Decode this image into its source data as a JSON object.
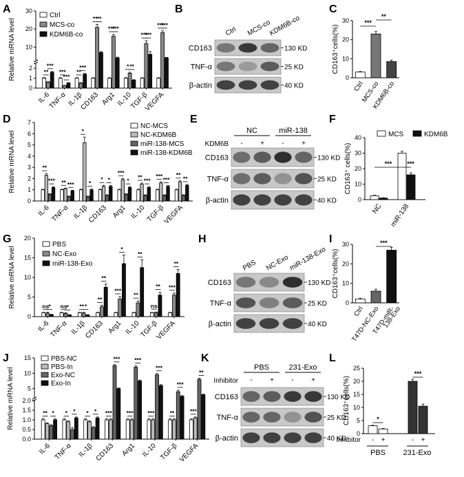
{
  "panels": {
    "A": {
      "letter": "A",
      "ylabel": "Relative mRNA level",
      "legend": [
        "Ctrl",
        "MCS-co",
        "KDM6B-co"
      ],
      "fills": [
        "#ffffff",
        "#888888",
        "#111111"
      ],
      "categories": [
        "IL-6",
        "TNF-α",
        "IL-1β",
        "CD163",
        "Arg1",
        "IL-10",
        "TGF-β",
        "VEGFA"
      ],
      "top_ticks": [
        "30",
        "20",
        "10"
      ],
      "bottom_ticks": [
        "2",
        "1",
        "0"
      ],
      "break_at": 2.5,
      "sigs": [
        "**",
        "***",
        "***",
        "***",
        "**",
        "***",
        "**",
        "**",
        "***",
        "***",
        "*",
        "**",
        "***",
        "***",
        "***",
        "***"
      ]
    },
    "B": {
      "letter": "B",
      "lanes": [
        "Ctrl",
        "MCS-co",
        "KDM6B-co"
      ],
      "rows": [
        "CD163",
        "TNF-α",
        "β-actin"
      ],
      "sizes": [
        "130 KD",
        "25 KD",
        "40 KD"
      ]
    },
    "C": {
      "letter": "C",
      "ylabel": "CD163⁺cells(%)",
      "categories": [
        "Ctrl",
        "MCS-co",
        "KDM6B-co"
      ],
      "yticks": [
        "0",
        "10",
        "20",
        "30"
      ],
      "sigs": [
        "***",
        "**"
      ]
    },
    "D": {
      "letter": "D",
      "ylabel": "Relative mRNA level",
      "legend": [
        "NC-MCS",
        "NC-KDM6B",
        "miR-138-MCS",
        "miR-138-KDM6B"
      ],
      "fills": [
        "#ffffff",
        "#bbbbbb",
        "#666666",
        "#111111"
      ],
      "categories": [
        "IL-6",
        "TNF-α",
        "IL-1β",
        "CD163",
        "Arg1",
        "IL-10",
        "TGF-β",
        "VEGFA"
      ],
      "yticks": [
        "0",
        "1",
        "2",
        "3",
        "4",
        "5",
        "6",
        "7"
      ],
      "sigs": [
        "**",
        "***",
        "**",
        "***",
        "*",
        "*",
        "*",
        "*",
        "***",
        "*",
        "**",
        "***",
        "***",
        "***",
        "**",
        "**"
      ]
    },
    "E": {
      "letter": "E",
      "groups": [
        "NC",
        "miR-138"
      ],
      "treatment": "KDM6B",
      "signs": [
        "-",
        "+",
        "-",
        "+"
      ],
      "rows": [
        "CD163",
        "TNF-α",
        "β-actin"
      ],
      "sizes": [
        "130 KD",
        "25 KD",
        "40 KD"
      ]
    },
    "F": {
      "letter": "F",
      "ylabel": "CD163⁺ cells(%)",
      "legend": [
        "MCS",
        "KDM6B"
      ],
      "categories": [
        "NC",
        "miR-138"
      ],
      "yticks": [
        "0",
        "10",
        "20",
        "30",
        "40"
      ],
      "sigs": [
        "***",
        "***"
      ]
    },
    "G": {
      "letter": "G",
      "ylabel": "Relative mRNA level",
      "legend": [
        "PBS",
        "NC-Exo",
        "miR-138-Exo"
      ],
      "fills": [
        "#ffffff",
        "#888888",
        "#111111"
      ],
      "categories": [
        "IL-6",
        "TNF-α",
        "IL-1β",
        "CD163",
        "Arg1",
        "IL-10",
        "TGF-β",
        "VEGFA"
      ],
      "yticks": [
        "0",
        "5",
        "10",
        "15",
        "20"
      ],
      "sigs": [
        "ns",
        "*",
        "ns",
        "*",
        "**",
        "*",
        "**",
        "**",
        "***",
        "*",
        "**",
        "**",
        "ns",
        "**",
        "***",
        "**"
      ]
    },
    "H": {
      "letter": "H",
      "lanes": [
        "PBS",
        "NC-Exo",
        "miR-138-Exo"
      ],
      "rows": [
        "CD163",
        "TNF-α",
        "β-actin"
      ],
      "sizes": [
        "130 KD",
        "25 KD",
        "40 KD"
      ]
    },
    "I": {
      "letter": "I",
      "ylabel": "CD163⁺cells(%)",
      "categories": [
        "Ctrl",
        "T47D-NC-Exo",
        "T47D-miR-138-Exo"
      ],
      "category_lines": [
        [
          "Ctrl"
        ],
        [
          "T47D-NC-Exo"
        ],
        [
          "T47D-miR-",
          "138-Exo"
        ]
      ],
      "yticks": [
        "0",
        "10",
        "20",
        "30"
      ],
      "sigs": [
        "***"
      ]
    },
    "J": {
      "letter": "J",
      "ylabel": "Relative mRNA level",
      "legend": [
        "PBS-NC",
        "PBS-In",
        "Exo-NC",
        "Exo-In"
      ],
      "fills": [
        "#ffffff",
        "#bbbbbb",
        "#666666",
        "#111111"
      ],
      "categories": [
        "IL-6",
        "TNF-α",
        "IL-1β",
        "CD163",
        "Arg1",
        "IL-10",
        "TGF-β",
        "VEGFA"
      ],
      "top_ticks": [
        "15",
        "10",
        "5"
      ],
      "bottom_ticks": [
        "2.0",
        "1.5",
        "1.0",
        "0.5",
        "0.0"
      ],
      "break_at": 2.0,
      "sigs": [
        "**",
        "*",
        "*",
        "*",
        "*",
        "*",
        "***",
        "***",
        "***",
        "***",
        "***",
        "***",
        "**",
        "***",
        "***",
        "**"
      ]
    },
    "K": {
      "letter": "K",
      "groups": [
        "PBS",
        "231-Exo"
      ],
      "treatment": "Inhibitor",
      "signs": [
        "-",
        "+",
        "-",
        "+"
      ],
      "rows": [
        "CD163",
        "TNF-α",
        "β-actin"
      ],
      "sizes": [
        "130 KD",
        "25 KD",
        "40 KD"
      ]
    },
    "L": {
      "letter": "L",
      "ylabel": "CD163⁺cells(%)",
      "treatment": "Inhibitor",
      "signs": [
        "-",
        "+",
        "-",
        "+"
      ],
      "groups": [
        "PBS",
        "231-Exo"
      ],
      "yticks": [
        "0",
        "5",
        "10",
        "15",
        "20",
        "25"
      ],
      "sigs": [
        "*",
        "***"
      ]
    }
  },
  "chart_data": [
    {
      "panel": "A",
      "type": "bar",
      "ylabel": "Relative mRNA level",
      "categories": [
        "IL-6",
        "TNF-α",
        "IL-1β",
        "CD163",
        "Arg1",
        "IL-10",
        "TGF-β",
        "VEGFA"
      ],
      "series": [
        {
          "name": "Ctrl",
          "values": [
            1.0,
            1.0,
            1.0,
            1.0,
            1.0,
            1.0,
            1.0,
            1.0
          ],
          "errors": [
            0.05,
            0.05,
            0.05,
            0.05,
            0.05,
            0.05,
            0.05,
            0.05
          ]
        },
        {
          "name": "MCS-co",
          "values": [
            0.6,
            0.25,
            0.5,
            21,
            16,
            1.5,
            12,
            18
          ],
          "errors": [
            0.05,
            0.03,
            0.05,
            1.5,
            1.0,
            0.1,
            1.5,
            1.0
          ]
        },
        {
          "name": "KDM6B-co",
          "values": [
            1.6,
            0.5,
            1.4,
            7,
            4,
            0.8,
            6,
            4
          ],
          "errors": [
            0.08,
            0.05,
            0.08,
            0.5,
            0.4,
            0.05,
            1.5,
            0.3
          ]
        }
      ],
      "axis_break": 2.5,
      "yticks_lower": [
        0,
        1,
        2
      ],
      "yticks_upper": [
        10,
        20,
        30
      ]
    },
    {
      "panel": "C",
      "type": "bar",
      "ylabel": "CD163⁺cells(%)",
      "categories": [
        "Ctrl",
        "MCS-co",
        "KDM6B-co"
      ],
      "values": [
        3,
        23,
        8.5
      ],
      "errors": [
        0.3,
        1.3,
        0.8
      ],
      "ylim": [
        0,
        30
      ]
    },
    {
      "panel": "D",
      "type": "bar",
      "ylabel": "Relative mRNA level",
      "categories": [
        "IL-6",
        "TNF-α",
        "IL-1β",
        "CD163",
        "Arg1",
        "IL-10",
        "TGF-β",
        "VEGFA"
      ],
      "series": [
        {
          "name": "NC-MCS",
          "values": [
            1.0,
            1.0,
            1.0,
            1.0,
            1.0,
            1.0,
            1.0,
            1.0
          ],
          "errors": [
            0.05,
            0.05,
            0.05,
            0.05,
            0.05,
            0.05,
            0.05,
            0.05
          ]
        },
        {
          "name": "NC-KDM6B",
          "values": [
            2.3,
            1.1,
            5.2,
            1.3,
            1.9,
            1.5,
            1.6,
            1.7
          ],
          "errors": [
            0.15,
            0.05,
            0.5,
            0.1,
            0.1,
            0.1,
            0.1,
            0.1
          ]
        },
        {
          "name": "miR-138-MCS",
          "values": [
            0.6,
            0.4,
            0.4,
            0.5,
            0.6,
            0.5,
            0.5,
            0.5
          ],
          "errors": [
            0.05,
            0.04,
            0.04,
            0.05,
            0.05,
            0.05,
            0.05,
            0.05
          ]
        },
        {
          "name": "miR-138-KDM6B",
          "values": [
            1.2,
            0.9,
            1.0,
            1.3,
            1.2,
            1.2,
            1.3,
            1.4
          ],
          "errors": [
            0.08,
            0.06,
            0.06,
            0.08,
            0.08,
            0.08,
            0.08,
            0.08
          ]
        }
      ],
      "ylim": [
        0,
        7
      ]
    },
    {
      "panel": "F",
      "type": "bar",
      "ylabel": "CD163⁺ cells(%)",
      "categories": [
        "NC",
        "miR-138"
      ],
      "series": [
        {
          "name": "MCS",
          "values": [
            2.5,
            30
          ],
          "errors": [
            0.3,
            1.2
          ]
        },
        {
          "name": "KDM6B",
          "values": [
            1.0,
            16
          ],
          "errors": [
            0.2,
            1.3
          ]
        }
      ],
      "ylim": [
        0,
        40
      ]
    },
    {
      "panel": "G",
      "type": "bar",
      "ylabel": "Relative mRNA level",
      "categories": [
        "IL-6",
        "TNF-α",
        "IL-1β",
        "CD163",
        "Arg1",
        "IL-10",
        "TGF-β",
        "VEGFA"
      ],
      "series": [
        {
          "name": "PBS",
          "values": [
            1.0,
            1.0,
            1.0,
            1.0,
            1.0,
            1.0,
            1.0,
            1.0
          ],
          "errors": [
            0.1,
            0.1,
            0.1,
            0.1,
            0.1,
            0.1,
            0.1,
            0.1
          ]
        },
        {
          "name": "NC-Exo",
          "values": [
            0.9,
            0.8,
            0.9,
            2.5,
            4.5,
            3.5,
            1.0,
            5.5
          ],
          "errors": [
            0.2,
            0.2,
            0.2,
            0.4,
            0.6,
            0.5,
            0.2,
            0.5
          ]
        },
        {
          "name": "miR-138-Exo",
          "values": [
            0.5,
            0.4,
            0.4,
            7.5,
            13.5,
            12.5,
            5.5,
            11
          ],
          "errors": [
            0.1,
            0.1,
            0.1,
            0.8,
            2.2,
            2.0,
            0.7,
            1.0
          ]
        }
      ],
      "ylim": [
        0,
        20
      ]
    },
    {
      "panel": "I",
      "type": "bar",
      "ylabel": "CD163⁺cells(%)",
      "categories": [
        "Ctrl",
        "T47D-NC-Exo",
        "T47D-miR-138-Exo"
      ],
      "values": [
        2,
        6,
        27
      ],
      "errors": [
        0.4,
        1.0,
        1.5
      ],
      "ylim": [
        0,
        30
      ]
    },
    {
      "panel": "J",
      "type": "bar",
      "ylabel": "Relative mRNA level",
      "categories": [
        "IL-6",
        "TNF-α",
        "IL-1β",
        "CD163",
        "Arg1",
        "IL-10",
        "TGF-β",
        "VEGFA"
      ],
      "series": [
        {
          "name": "PBS-NC",
          "values": [
            1.0,
            1.0,
            1.0,
            1.0,
            1.0,
            1.0,
            1.0,
            1.0
          ],
          "errors": [
            0.05,
            0.05,
            0.05,
            0.05,
            0.05,
            0.05,
            0.05,
            0.05
          ]
        },
        {
          "name": "PBS-In",
          "values": [
            0.8,
            0.9,
            0.9,
            1.0,
            1.0,
            1.0,
            1.0,
            1.1
          ],
          "errors": [
            0.05,
            0.05,
            0.05,
            0.05,
            0.05,
            0.05,
            0.05,
            0.05
          ]
        },
        {
          "name": "Exo-NC",
          "values": [
            0.7,
            0.5,
            0.6,
            12.5,
            12,
            9.5,
            4,
            8
          ],
          "errors": [
            0.05,
            0.1,
            0.05,
            0.3,
            0.4,
            0.4,
            0.5,
            0.4
          ]
        },
        {
          "name": "Exo-In",
          "values": [
            1.0,
            1.1,
            1.1,
            5,
            7.5,
            6,
            2.5,
            3
          ],
          "errors": [
            0.05,
            0.05,
            0.05,
            0.2,
            0.3,
            0.3,
            0.2,
            0.2
          ]
        }
      ],
      "axis_break": 2.0,
      "yticks_lower": [
        0,
        0.5,
        1.0,
        1.5,
        2.0
      ],
      "yticks_upper": [
        5,
        10,
        15
      ]
    },
    {
      "panel": "L",
      "type": "bar",
      "ylabel": "CD163⁺cells(%)",
      "categories": [
        "PBS -",
        "PBS +",
        "231-Exo -",
        "231-Exo +"
      ],
      "values": [
        3,
        1.8,
        20,
        10.5
      ],
      "errors": [
        0.2,
        0.2,
        0.8,
        0.8
      ],
      "ylim": [
        0,
        25
      ]
    }
  ]
}
